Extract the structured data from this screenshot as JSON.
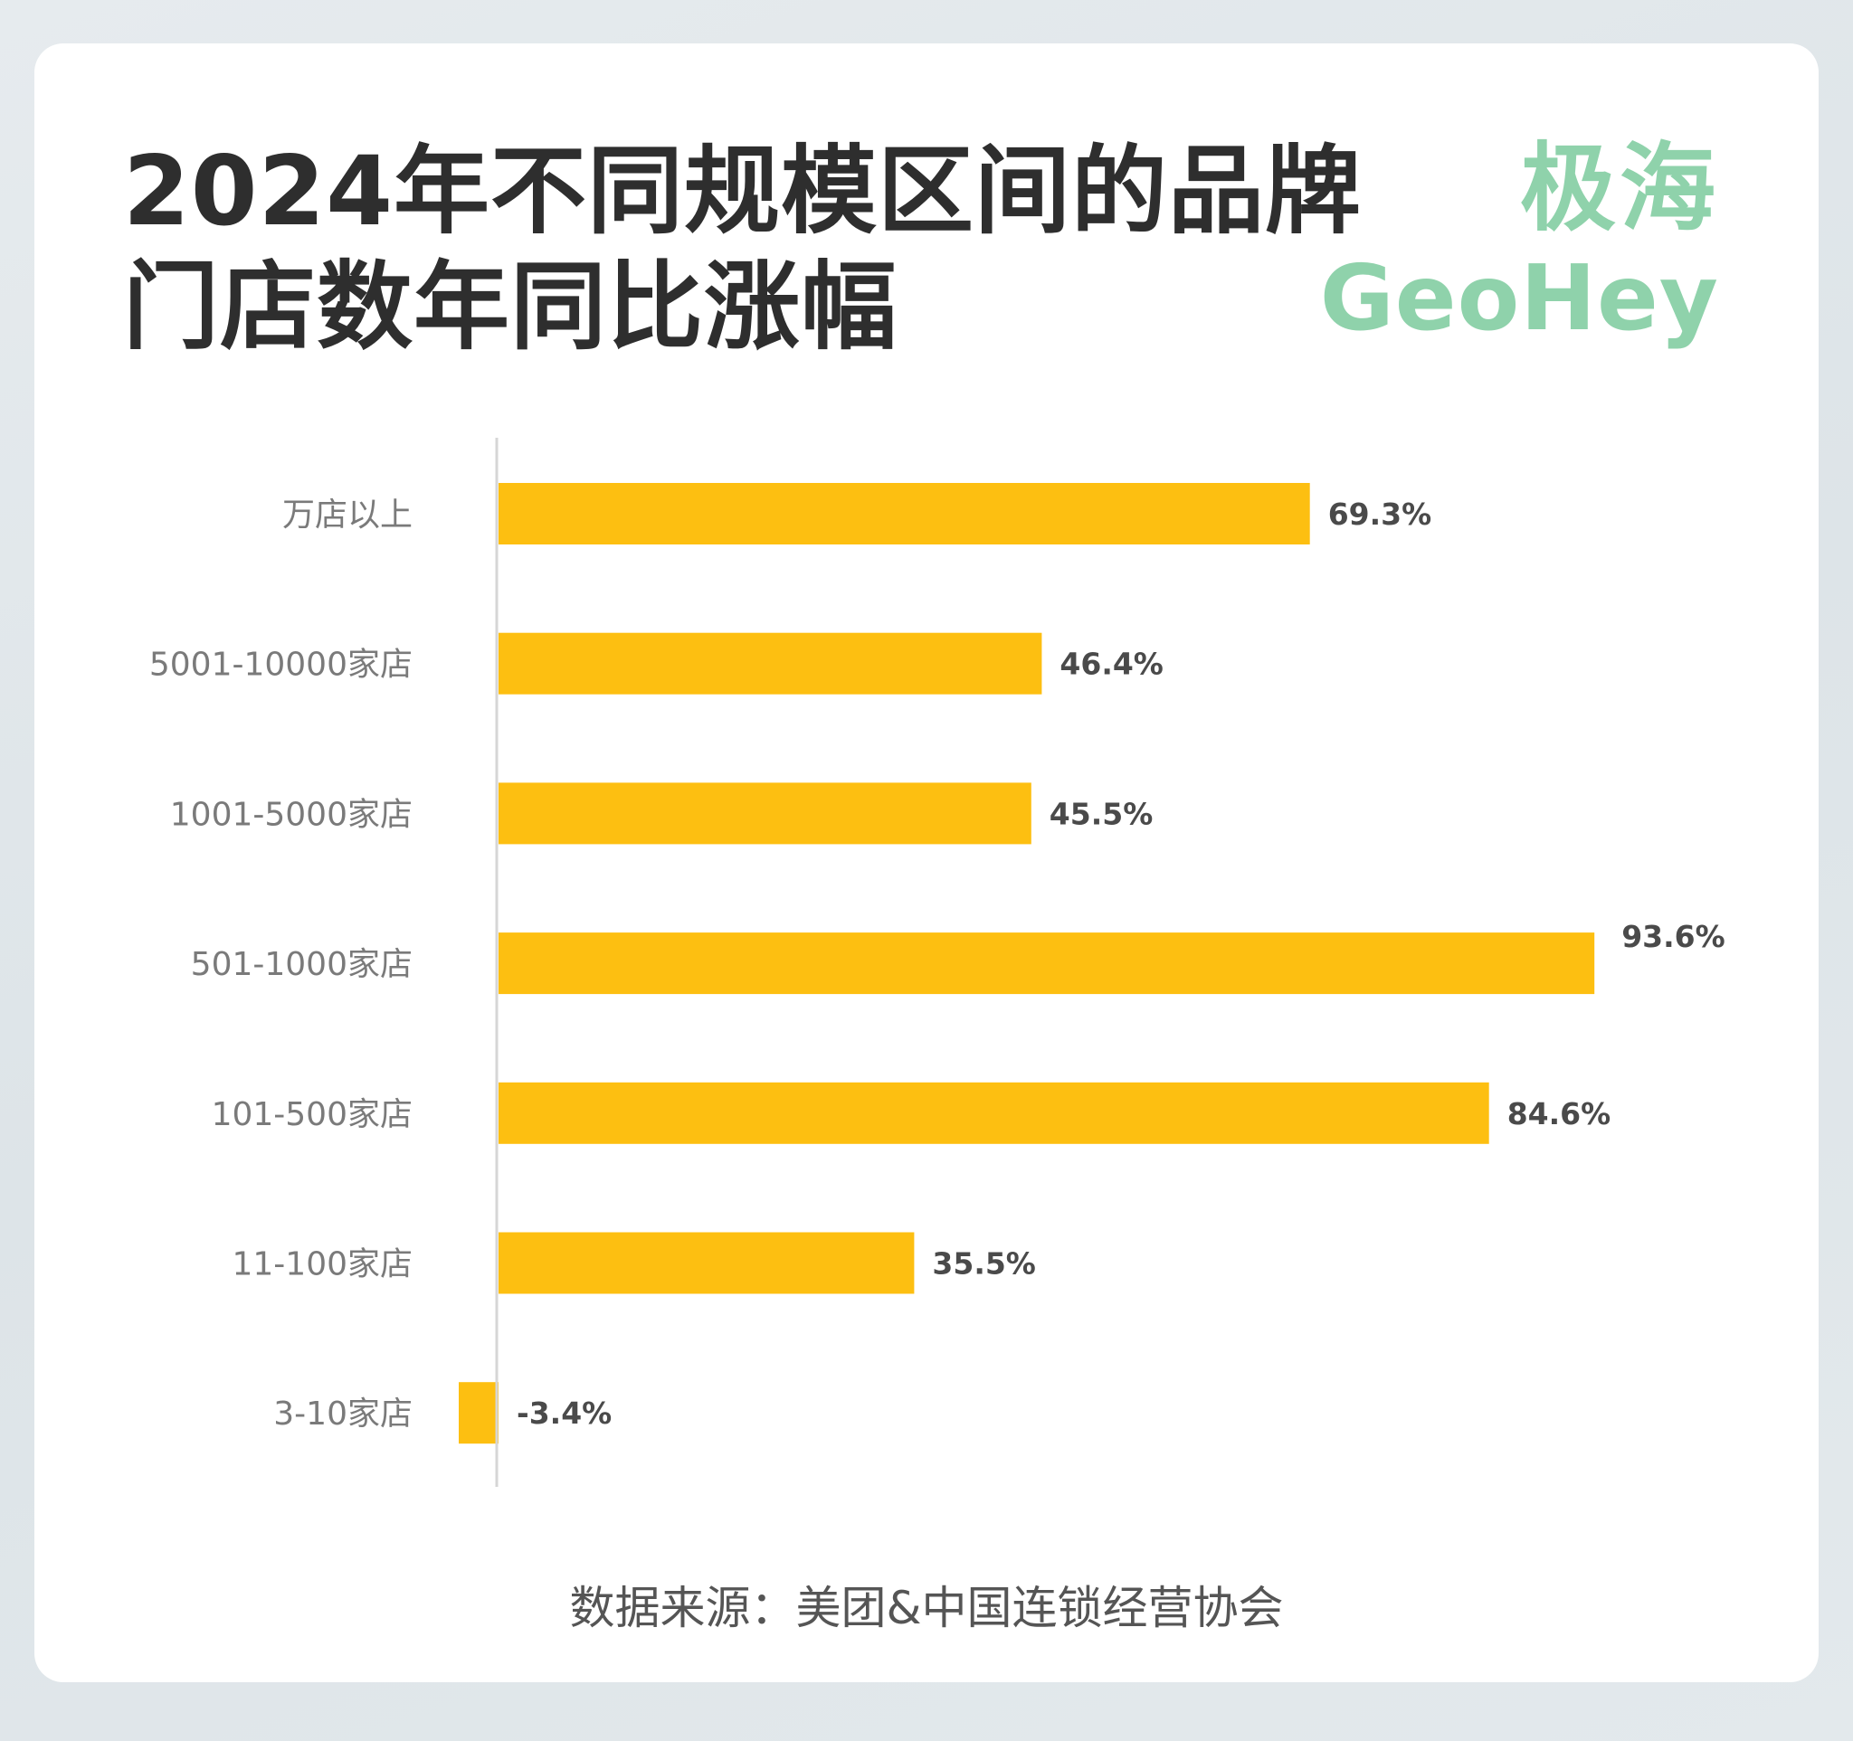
{
  "title": {
    "line1": "2024年不同规模区间的品牌",
    "line2": "门店数年同比涨幅"
  },
  "brand": {
    "name_cn": "极海",
    "name_en": "GeoHey"
  },
  "source": "数据来源：美团&中国连锁经营协会",
  "colors": {
    "bar": "#fdbf11",
    "axis": "#d6d6d6",
    "category_label": "#7a7a7a",
    "value_label": "#4a4a4a",
    "brand": "#8fd2ab"
  },
  "chart_data": {
    "type": "bar",
    "orientation": "horizontal",
    "categories": [
      "万店以上",
      "5001-10000家店",
      "1001-5000家店",
      "501-1000家店",
      "101-500家店",
      "11-100家店",
      "3-10家店"
    ],
    "values": [
      69.3,
      46.4,
      45.5,
      93.6,
      84.6,
      35.5,
      -3.4
    ],
    "value_labels": [
      "69.3%",
      "46.4%",
      "45.5%",
      "93.6%",
      "84.6%",
      "35.5%",
      "-3.4%"
    ],
    "title": "",
    "xlabel": "",
    "ylabel": "",
    "xlim": [
      -3.4,
      93.6
    ],
    "grid": false,
    "legend": "none"
  }
}
